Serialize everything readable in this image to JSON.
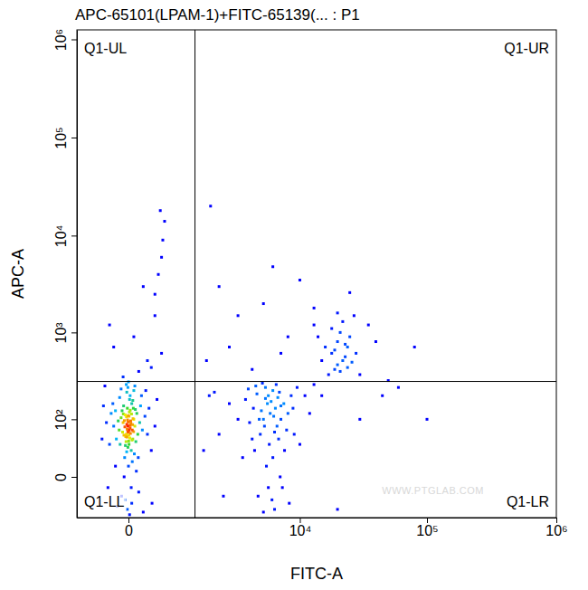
{
  "chart_data": {
    "type": "scatter",
    "title": "APC-65101(LPAM-1)+FITC-65139(... : P1",
    "x_label": "FITC-A",
    "y_label": "APC-A",
    "log": true,
    "marker": "dot",
    "xlim": [
      -750,
      1000000
    ],
    "ylim": [
      -56,
      1250000
    ],
    "xticks": [
      0,
      {
        "value": 10000,
        "label": "10⁴"
      },
      {
        "value": 100000,
        "label": "10⁵"
      },
      {
        "value": 1000000,
        "label": "10⁶"
      }
    ],
    "yticks": [
      0,
      {
        "value": 100,
        "label": "10²"
      },
      {
        "value": 1000,
        "label": "10³"
      },
      {
        "value": 10000,
        "label": "10⁴"
      },
      {
        "value": 100000,
        "label": "10⁵"
      },
      {
        "value": 1000000,
        "label": "10⁶"
      }
    ],
    "quadrant_gates": {
      "x": 1130,
      "y": 293
    },
    "quadrant_labels": [
      "Q1-UL",
      "Q1-UR",
      "Q1-LL",
      "Q1-LR"
    ],
    "watermark": "WWW.PTGLAB.COM",
    "x": [
      -20,
      15,
      40,
      -50,
      5,
      60,
      -80,
      25,
      -10,
      80,
      -35,
      50,
      0,
      -60,
      30,
      -15,
      70,
      -90,
      10,
      45,
      -25,
      20,
      -70,
      90,
      -5,
      35,
      -45,
      55,
      -100,
      15,
      -30,
      65,
      0,
      -55,
      40,
      -120,
      110,
      -15,
      25,
      -40,
      75,
      -65,
      30,
      -10,
      95,
      -130,
      120,
      -5,
      50,
      -85,
      140,
      -150,
      10,
      -20,
      60,
      -110,
      100,
      -160,
      170,
      0,
      -200,
      200,
      -180,
      220,
      -240,
      250,
      -70,
      130,
      -30,
      35,
      5,
      -5,
      12,
      -12,
      22,
      -22,
      8,
      -8,
      18,
      -18,
      28,
      -28,
      3,
      -3,
      33,
      -33,
      42,
      -42,
      6,
      -6,
      14,
      -14,
      2,
      -2,
      38,
      -38,
      16,
      -16,
      48,
      -48,
      300,
      -280,
      260,
      -220,
      180,
      -300,
      330,
      -260,
      150,
      -130,
      -50,
      100,
      200,
      -150,
      300,
      150,
      50,
      250,
      400,
      -200,
      350,
      400,
      420,
      450,
      380,
      300,
      4000,
      5000,
      6000,
      7000,
      5500,
      4500,
      6500,
      8000,
      3500,
      5200,
      6200,
      7500,
      4800,
      5800,
      6800,
      3800,
      9000,
      5300,
      6100,
      4300,
      7200,
      5600,
      6600,
      4100,
      8500,
      5000,
      6400,
      7800,
      3300,
      5400,
      6000,
      4700,
      5900,
      7000,
      4400,
      6300,
      5100,
      8200,
      3700,
      6700,
      5700,
      4900,
      6900,
      5200,
      7400,
      4600,
      6200,
      5500,
      8800,
      4200,
      9500,
      3000,
      10000,
      2500,
      11000,
      2200,
      12000,
      2000,
      13000,
      1800,
      18000,
      20000,
      22000,
      19000,
      24000,
      21000,
      17000,
      23000,
      25000,
      20000,
      16000,
      22000,
      19000,
      26000,
      21000,
      18000,
      23000,
      15000,
      20000,
      24000,
      28000,
      14000,
      30000,
      13000,
      27000,
      1500,
      2000,
      3000,
      5000,
      8000,
      10000,
      13000,
      7000,
      4000,
      25000,
      40000,
      50000,
      60000,
      80000,
      45000,
      30000,
      20000,
      1400,
      1600,
      2500,
      35000,
      15000,
      100000,
      6000,
      1650
    ],
    "values": [
      60,
      75,
      50,
      90,
      110,
      80,
      40,
      30,
      140,
      120,
      20,
      100,
      65,
      130,
      160,
      85,
      45,
      70,
      180,
      140,
      55,
      95,
      105,
      60,
      35,
      70,
      150,
      25,
      95,
      200,
      115,
      135,
      10,
      65,
      175,
      50,
      90,
      220,
      -10,
      0,
      5,
      -20,
      -30,
      -40,
      20,
      130,
      150,
      250,
      230,
      190,
      70,
      80,
      -50,
      270,
      260,
      -35,
      -15,
      160,
      110,
      290,
      40,
      60,
      120,
      140,
      90,
      30,
      240,
      200,
      -25,
      15,
      40,
      80,
      52,
      72,
      88,
      45,
      125,
      98,
      62,
      108,
      118,
      38,
      58,
      92,
      48,
      78,
      102,
      58,
      70,
      66,
      82,
      54,
      46,
      112,
      84,
      96,
      132,
      28,
      66,
      118,
      80,
      150,
      -30,
      -10,
      230,
      50,
      180,
      260,
      -45,
      10,
      330,
      380,
      500,
      700,
      1500,
      3000,
      900,
      420,
      600,
      1200,
      4000,
      6000,
      9000,
      14000,
      18000,
      2500,
      50,
      100,
      20,
      150,
      200,
      -20,
      80,
      120,
      180,
      250,
      -40,
      30,
      130,
      170,
      220,
      90,
      60,
      10,
      110,
      260,
      -10,
      40,
      190,
      140,
      200,
      -45,
      270,
      70,
      20,
      160,
      230,
      60,
      -25,
      100,
      210,
      140,
      80,
      -30,
      240,
      50,
      120,
      280,
      0,
      185,
      160,
      100,
      65,
      -10,
      140,
      30,
      250,
      100,
      40,
      160,
      200,
      -20,
      120,
      60,
      270,
      220,
      600,
      800,
      500,
      400,
      700,
      1000,
      350,
      550,
      900,
      450,
      700,
      1300,
      650,
      480,
      380,
      1100,
      750,
      500,
      1600,
      420,
      600,
      900,
      350,
      1200,
      1500,
      500,
      3000,
      1500,
      2000,
      900,
      3500,
      1800,
      600,
      400,
      2600,
      800,
      300,
      250,
      700,
      200,
      100,
      -40,
      30,
      200,
      700,
      1200,
      200,
      100,
      4800,
      20000
    ]
  }
}
